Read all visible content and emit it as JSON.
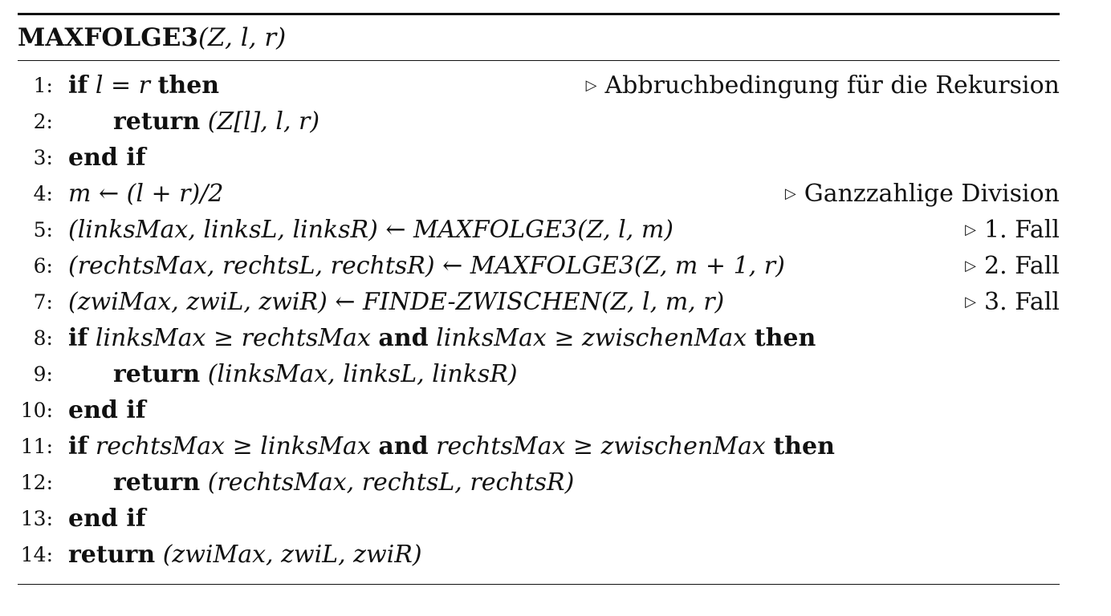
{
  "algorithm": {
    "name": "MAXFOLGE3",
    "params": "(Z, l, r)"
  },
  "lines": [
    {
      "num": "1:",
      "indent": 0,
      "kw1": "if",
      "expr": " l = r ",
      "kw2": "then",
      "expr2": "",
      "kw3": "",
      "comment": "Abbruchbedingung für die Rekursion"
    },
    {
      "num": "2:",
      "indent": 1,
      "kw1": "return",
      "expr": " (Z[l], l, r)",
      "kw2": "",
      "expr2": "",
      "kw3": "",
      "comment": ""
    },
    {
      "num": "3:",
      "indent": 0,
      "kw1": "end if",
      "expr": "",
      "kw2": "",
      "expr2": "",
      "kw3": "",
      "comment": ""
    },
    {
      "num": "4:",
      "indent": 0,
      "kw1": "",
      "expr": "m ← (l + r)/2",
      "kw2": "",
      "expr2": "",
      "kw3": "",
      "comment": "Ganzzahlige Division"
    },
    {
      "num": "5:",
      "indent": 0,
      "kw1": "",
      "expr": "(linksMax, linksL, linksR) ← MAXFOLGE3(Z, l, m)",
      "kw2": "",
      "expr2": "",
      "kw3": "",
      "comment": "1. Fall"
    },
    {
      "num": "6:",
      "indent": 0,
      "kw1": "",
      "expr": "(rechtsMax, rechtsL, rechtsR) ← MAXFOLGE3(Z, m + 1, r)",
      "kw2": "",
      "expr2": "",
      "kw3": "",
      "comment": "2. Fall"
    },
    {
      "num": "7:",
      "indent": 0,
      "kw1": "",
      "expr": "(zwiMax, zwiL, zwiR) ← FINDE-ZWISCHEN(Z, l, m, r)",
      "kw2": "",
      "expr2": "",
      "kw3": "",
      "comment": "3. Fall"
    },
    {
      "num": "8:",
      "indent": 0,
      "kw1": "if",
      "expr": " linksMax ≥ rechtsMax ",
      "kw2": "and",
      "expr2": " linksMax ≥ zwischenMax ",
      "kw3": "then",
      "comment": ""
    },
    {
      "num": "9:",
      "indent": 1,
      "kw1": "return",
      "expr": " (linksMax, linksL, linksR)",
      "kw2": "",
      "expr2": "",
      "kw3": "",
      "comment": ""
    },
    {
      "num": "10:",
      "indent": 0,
      "kw1": "end if",
      "expr": "",
      "kw2": "",
      "expr2": "",
      "kw3": "",
      "comment": ""
    },
    {
      "num": "11:",
      "indent": 0,
      "kw1": "if",
      "expr": " rechtsMax ≥ linksMax ",
      "kw2": "and",
      "expr2": " rechtsMax ≥ zwischenMax ",
      "kw3": "then",
      "comment": ""
    },
    {
      "num": "12:",
      "indent": 1,
      "kw1": "return",
      "expr": " (rechtsMax, rechtsL, rechtsR)",
      "kw2": "",
      "expr2": "",
      "kw3": "",
      "comment": ""
    },
    {
      "num": "13:",
      "indent": 0,
      "kw1": "end if",
      "expr": "",
      "kw2": "",
      "expr2": "",
      "kw3": "",
      "comment": ""
    },
    {
      "num": "14:",
      "indent": 0,
      "kw1": "return",
      "expr": " (zwiMax, zwiL, zwiR)",
      "kw2": "",
      "expr2": "",
      "kw3": "",
      "comment": ""
    }
  ]
}
